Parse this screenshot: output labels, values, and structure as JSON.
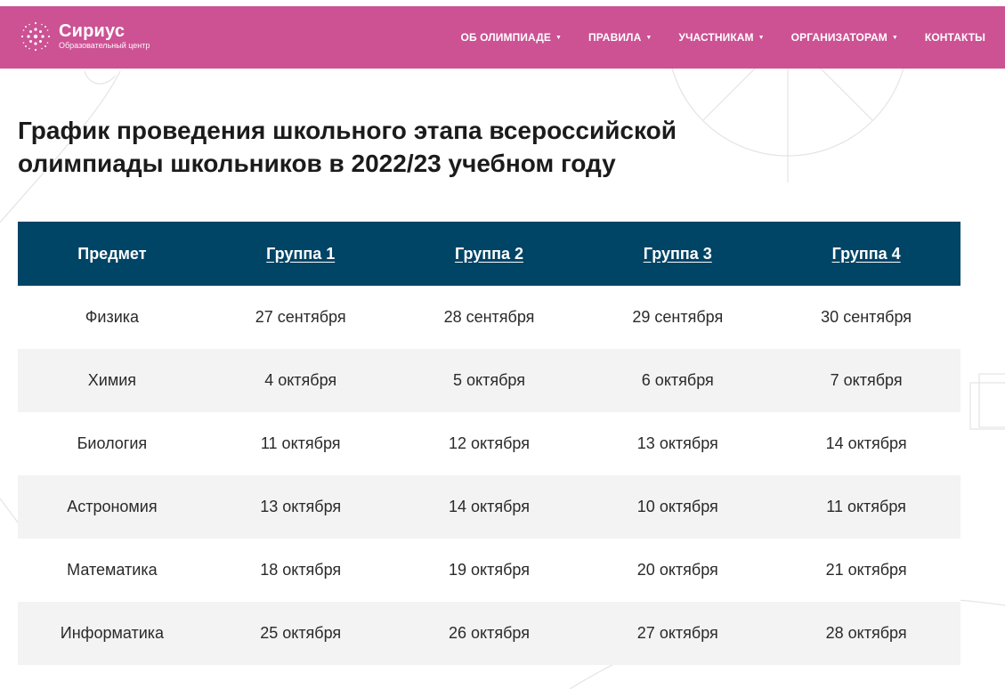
{
  "header": {
    "logo_name": "Сириус",
    "logo_sub": "Образовательный центр",
    "nav": [
      {
        "label": "ОБ ОЛИМПИАДЕ",
        "dropdown": true
      },
      {
        "label": "ПРАВИЛА",
        "dropdown": true
      },
      {
        "label": "УЧАСТНИКАМ",
        "dropdown": true
      },
      {
        "label": "ОРГАНИЗАТОРАМ",
        "dropdown": true
      },
      {
        "label": "КОНТАКТЫ",
        "dropdown": false
      }
    ]
  },
  "page": {
    "title_line1": "График проведения школьного этапа всероссийской",
    "title_line2": "олимпиады школьников в 2022/23 учебном году"
  },
  "table": {
    "headers": [
      "Предмет",
      "Группа 1",
      "Группа 2",
      "Группа 3",
      "Группа 4"
    ],
    "rows": [
      [
        "Физика",
        "27 сентября",
        "28 сентября",
        "29 сентября",
        "30 сентября"
      ],
      [
        "Химия",
        "4 октября",
        "5 октября",
        "6 октября",
        "7 октября"
      ],
      [
        "Биология",
        "11 октября",
        "12 октября",
        "13 октября",
        "14 октября"
      ],
      [
        "Астрономия",
        "13 октября",
        "14 октября",
        "10 октября",
        "11 октября"
      ],
      [
        "Математика",
        "18 октября",
        "19 октября",
        "20 октября",
        "21 октября"
      ],
      [
        "Информатика",
        "25 октября",
        "26 октября",
        "27 октября",
        "28 октября"
      ]
    ]
  },
  "colors": {
    "header_bg": "#cc5294",
    "table_header_bg": "#004466",
    "row_alt_bg": "#f3f3f3"
  },
  "icons": {
    "logo": "sirius-dots-logo-icon",
    "dropdown": "caret-down-icon"
  }
}
